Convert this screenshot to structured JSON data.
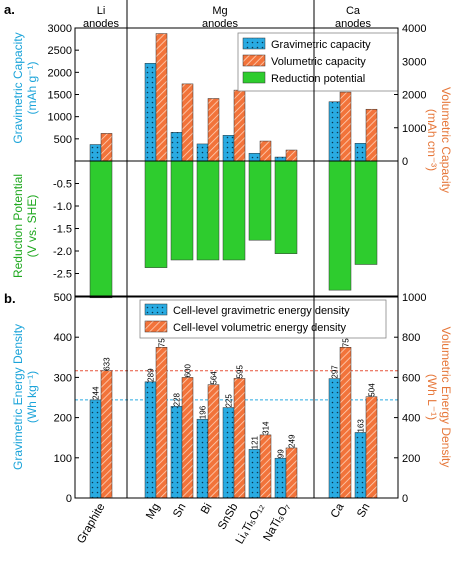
{
  "colors": {
    "gravimetric": "#29abe2",
    "volumetric": "#f2733a",
    "reduction": "#2ecc2e",
    "axis_grav": "#1aa3d9",
    "axis_vol": "#e6773a",
    "axis_red": "#1fa81f"
  },
  "chart_data": [
    {
      "type": "bar",
      "panel_label": "a.",
      "groups": [
        {
          "label_lines": [
            "Li",
            "anodes"
          ]
        },
        {
          "label_lines": [
            "Mg",
            "anodes"
          ]
        },
        {
          "label_lines": [
            "Ca",
            "anodes"
          ]
        }
      ],
      "categories": [
        "Graphite",
        "Mg",
        "Sn",
        "Bi",
        "SnSb",
        "Li4Ti5O12",
        "NaTi3O7",
        "Ca",
        "Sn"
      ],
      "legend_position": "top-right",
      "legend": [
        "Gravimetric capacity",
        "Volumetric capacity",
        "Reduction potential"
      ],
      "series": [
        {
          "name": "Gravimetric capacity",
          "axis": "left-top",
          "hatch": "dots",
          "values": [
            372,
            2205,
            647,
            385,
            580,
            175,
            89,
            1337,
            400
          ]
        },
        {
          "name": "Volumetric capacity",
          "axis": "right-top",
          "hatch": "diagonal",
          "values": [
            830,
            3833,
            2319,
            1880,
            2132,
            600,
            330,
            2073,
            1557
          ]
        },
        {
          "name": "Reduction potential",
          "axis": "left-bottom",
          "values": [
            -3.04,
            -2.37,
            -2.2,
            -2.2,
            -2.2,
            -1.76,
            -2.06,
            -2.87,
            -2.3
          ]
        }
      ],
      "y_left_top": {
        "label_lines": [
          "Gravimetric Capacity",
          "(mAh g⁻¹)"
        ],
        "ylim": [
          0,
          3000
        ],
        "ticks": [
          "500",
          "1000",
          "1500",
          "2000",
          "2500",
          "3000"
        ]
      },
      "y_right_top": {
        "label_lines": [
          "Volumetric Capacity",
          "(mAh cm⁻³)"
        ],
        "ylim": [
          0,
          4000
        ],
        "ticks": [
          "0",
          "1000",
          "2000",
          "3000",
          "4000"
        ]
      },
      "y_left_bottom": {
        "label_lines": [
          "Reduction Potential",
          "(V vs. SHE)"
        ],
        "ylim": [
          -3.0,
          0
        ],
        "ticks": [
          "-0.5",
          "-1.0",
          "-1.5",
          "-2.0",
          "-2.5"
        ]
      }
    },
    {
      "type": "bar",
      "panel_label": "b.",
      "categories": [
        "Graphite",
        "Mg",
        "Sn",
        "Bi",
        "SnSb",
        "Li₄Ti₅O₁₂",
        "NaTi₃O₇",
        "Ca",
        "Sn"
      ],
      "legend_position": "top-right",
      "legend": [
        "Cell-level gravimetric energy density",
        "Cell-level volumetric energy density"
      ],
      "series": [
        {
          "name": "Cell-level gravimetric energy density",
          "axis": "left",
          "hatch": "dots",
          "values": [
            244,
            289,
            228,
            196,
            225,
            121,
            99,
            297,
            163
          ],
          "labels": [
            "244",
            "289",
            "228",
            "196",
            "225",
            "121",
            "99",
            "297",
            "163"
          ]
        },
        {
          "name": "Cell-level volumetric energy density",
          "axis": "right",
          "hatch": "diagonal",
          "values": [
            633,
            750,
            600,
            564,
            595,
            314,
            249,
            750,
            504
          ],
          "labels": [
            "633",
            "750",
            "600",
            "564",
            "595",
            "314",
            "249",
            "750",
            "504"
          ]
        }
      ],
      "reference_lines": {
        "gravimetric": 244,
        "volumetric": 633
      },
      "y_left": {
        "label_lines": [
          "Gravimetric Energy Density",
          "(Wh kg⁻¹)"
        ],
        "ylim": [
          0,
          500
        ],
        "ticks": [
          "0",
          "100",
          "200",
          "300",
          "400",
          "500"
        ]
      },
      "y_right": {
        "label_lines": [
          "Volumetric Energy Density",
          "(Wh L⁻¹)"
        ],
        "ylim": [
          0,
          1000
        ],
        "ticks": [
          "0",
          "200",
          "400",
          "600",
          "800",
          "1000"
        ]
      }
    }
  ]
}
